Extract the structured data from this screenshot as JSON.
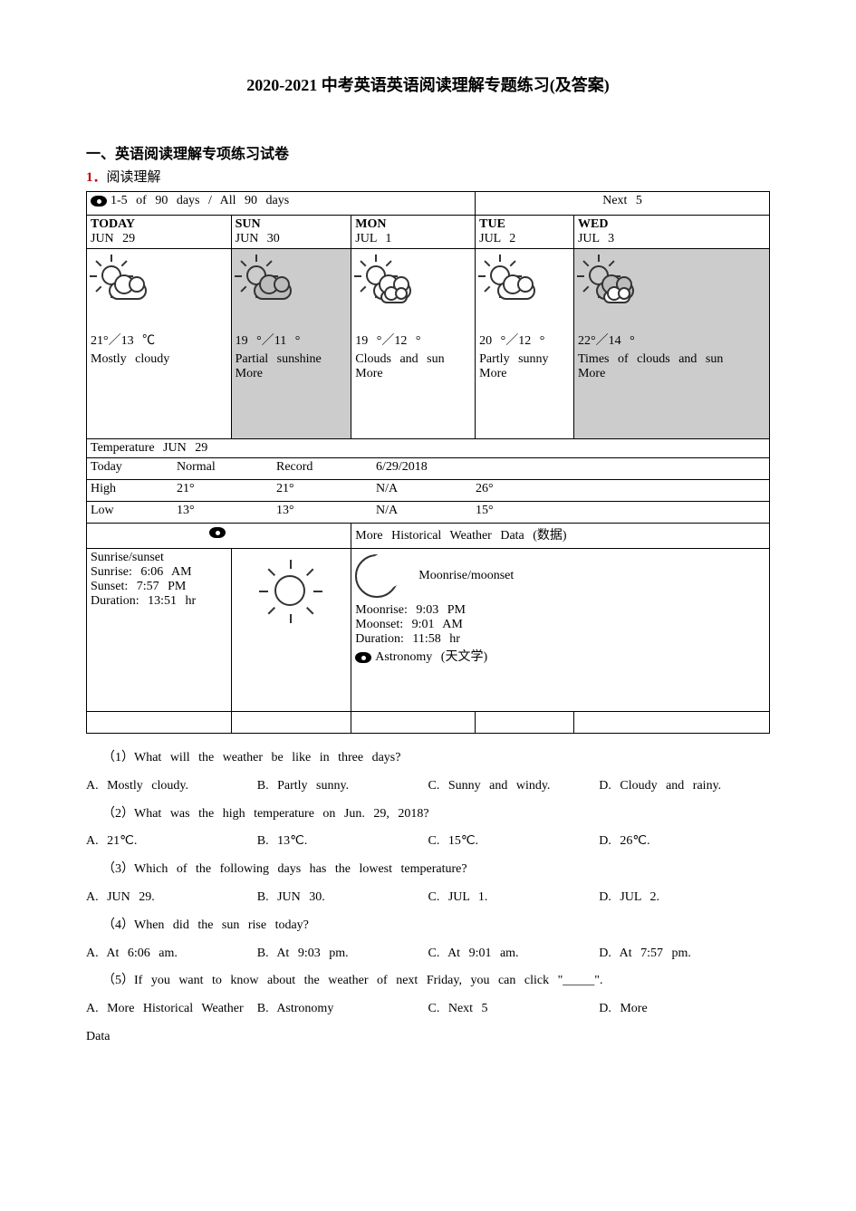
{
  "title": "2020-2021 中考英语英语阅读理解专题练习(及答案)",
  "section_heading": "一、英语阅读理解专项练习试卷",
  "item_number": "1．",
  "item_label": "阅读理解",
  "tabs": {
    "left": "1-5  of 90 days  /  All 90 days",
    "right": "Next 5"
  },
  "forecast": [
    {
      "day": "TODAY",
      "date": "JUN  29",
      "temp": "21°／13 ℃",
      "desc": "Mostly  cloudy",
      "gray": false,
      "cloud2": false
    },
    {
      "day": "SUN",
      "date": "JUN  30",
      "temp": "19  °／11 °",
      "desc": "Partial  sunshine",
      "more": "More",
      "gray": true,
      "cloud2": false
    },
    {
      "day": "MON",
      "date": "JUL  1",
      "temp": "19  °／12 °",
      "desc": "Clouds  and sun",
      "more": "More",
      "gray": false,
      "cloud2": true
    },
    {
      "day": "TUE",
      "date": "JUL  2",
      "temp": "20  °／12 °",
      "desc": "Partly sunny",
      "more": "More",
      "gray": false,
      "cloud2": false
    },
    {
      "day": "WED",
      "date": "JUL  3",
      "temp": "22°／14 °",
      "desc": "Times  of clouds  and sun",
      "more": "More",
      "gray": true,
      "cloud2": true
    }
  ],
  "temp_section_title": "Temperature  JUN 29",
  "temp_table": {
    "headers": [
      "",
      "Today",
      "Normal",
      "Record",
      "6/29/2018"
    ],
    "rows": [
      [
        "High",
        "21°",
        "21°",
        "N/A",
        "26°"
      ],
      [
        "Low",
        "13°",
        "13°",
        "N/A",
        "15°"
      ]
    ]
  },
  "history_link": "More  Historical Weather Data (数据)",
  "sun": {
    "header": "Sunrise/sunset",
    "rise": "Sunrise:  6:06 AM",
    "set": "Sunset:  7:57 PM",
    "dur": "Duration:  13:51 hr"
  },
  "moon": {
    "header": "Moonrise/moonset",
    "rise": "Moonrise:  9:03 PM",
    "set": "Moonset:  9:01 AM",
    "dur": "Duration:  11:58 hr",
    "astro": "Astronomy  (天文学)"
  },
  "questions": [
    {
      "q": "（1）What will the weather be like in three days?",
      "opts": [
        "A. Mostly cloudy.",
        "B. Partly sunny.",
        "C. Sunny and windy.",
        "D. Cloudy and rainy."
      ]
    },
    {
      "q": "（2）What was the high temperature on Jun. 29, 2018?",
      "opts": [
        "A. 21℃.",
        "B. 13℃.",
        "C. 15℃.",
        "D. 26℃."
      ]
    },
    {
      "q": "（3）Which of the following days has the lowest temperature?",
      "opts": [
        "A. JUN 29.",
        "B. JUN 30.",
        "C. JUL 1.",
        "D. JUL 2."
      ]
    },
    {
      "q": "（4）When did the sun rise today?",
      "opts": [
        "A. At 6:06 am.",
        "B. At 9:03 pm.",
        "C. At 9:01 am.",
        "D. At 7:57 pm."
      ]
    },
    {
      "q": "（5）If you want to know about the weather of next Friday, you can click \"_____\".",
      "opts": [
        "A. More Historical Weather Data",
        "B. Astronomy",
        "C. Next 5",
        "D. More"
      ]
    }
  ]
}
